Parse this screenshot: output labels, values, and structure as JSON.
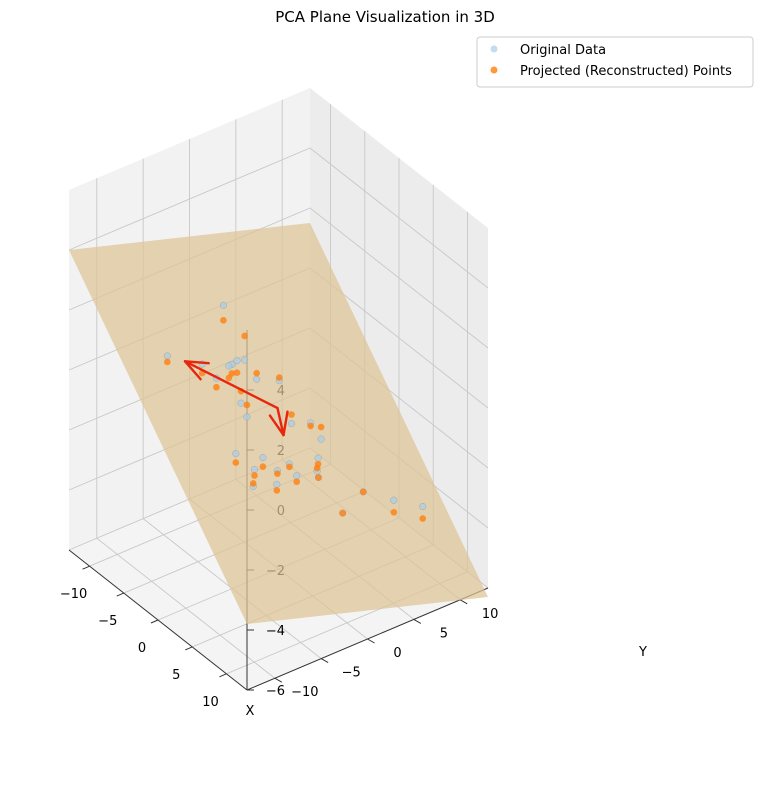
{
  "chart_data": {
    "type": "scatter",
    "title": "PCA Plane Visualization in 3D",
    "xlabel": "X",
    "ylabel": "Y",
    "zlabel": "",
    "xlim": [
      -13,
      13
    ],
    "ylim": [
      -13,
      13
    ],
    "zlim": [
      -6,
      6
    ],
    "xticks": [
      -10,
      -5,
      0,
      5,
      10
    ],
    "yticks": [
      -10,
      -5,
      0,
      5,
      10
    ],
    "zticks": [
      -6,
      -4,
      -2,
      0,
      2,
      4
    ],
    "xtick_labels": [
      "−10",
      "−5",
      "0",
      "5",
      "10"
    ],
    "ytick_labels": [
      "−10",
      "−5",
      "0",
      "5",
      "10"
    ],
    "ztick_labels": [
      "−6",
      "−4",
      "−2",
      "0",
      "2",
      "4"
    ],
    "grid": true,
    "legend_position": "top-right",
    "series": [
      {
        "name": "Original Data",
        "color": "#aacde7",
        "points": [
          [
            -0.6,
            -5.5,
            3.4
          ],
          [
            0.2,
            -3.8,
            1.5
          ],
          [
            -2.2,
            -6.6,
            1.3
          ],
          [
            -1.0,
            -4.3,
            1.2
          ],
          [
            -4.6,
            -8.6,
            1.4
          ],
          [
            0.6,
            -2.8,
            0.8
          ],
          [
            -0.1,
            -4.4,
            1.5
          ],
          [
            1.2,
            -0.8,
            0.6
          ],
          [
            2.3,
            -0.3,
            -0.7
          ],
          [
            3.2,
            1.1,
            -0.7
          ],
          [
            -0.2,
            -3.9,
            0.0
          ],
          [
            -1.7,
            -4.1,
            1.0
          ],
          [
            -2.3,
            -5.0,
            0.6
          ],
          [
            -1.5,
            -2.3,
            -0.9
          ],
          [
            2.0,
            -0.3,
            -2.1
          ],
          [
            3.2,
            1.8,
            -2.4
          ],
          [
            4.6,
            1.2,
            -1.0
          ],
          [
            -1.2,
            -0.8,
            -2.4
          ],
          [
            -0.7,
            0.4,
            -2.9
          ],
          [
            0.9,
            1.3,
            -2.9
          ],
          [
            2.4,
            2.5,
            -2.2
          ],
          [
            1.5,
            3.2,
            -3.1
          ],
          [
            -1.6,
            1.0,
            -3.6
          ],
          [
            -3.1,
            -0.3,
            -3.2
          ],
          [
            -2.2,
            -1.1,
            -3.5
          ],
          [
            -3.8,
            -1.8,
            -2.6
          ],
          [
            4.5,
            3.6,
            -3.8
          ],
          [
            4.8,
            5.6,
            -3.3
          ],
          [
            7.8,
            9.8,
            -3.8
          ],
          [
            5.2,
            8.6,
            -3.9
          ]
        ]
      },
      {
        "name": "Projected (Reconstructed) Points",
        "color": "#ff7f0e",
        "points": [
          [
            -0.6,
            -5.5,
            2.9
          ],
          [
            0.2,
            -3.8,
            2.3
          ],
          [
            -2.2,
            -6.6,
            1.0
          ],
          [
            -1.0,
            -4.3,
            0.9
          ],
          [
            -4.6,
            -8.6,
            1.2
          ],
          [
            0.6,
            -2.8,
            1.0
          ],
          [
            -0.1,
            -4.4,
            1.1
          ],
          [
            1.2,
            -0.8,
            0.7
          ],
          [
            2.3,
            -0.3,
            -0.4
          ],
          [
            3.2,
            1.1,
            -0.8
          ],
          [
            -0.2,
            -3.9,
            0.4
          ],
          [
            -1.7,
            -4.1,
            0.6
          ],
          [
            -2.3,
            -5.0,
            0.3
          ],
          [
            -1.5,
            -2.3,
            -0.5
          ],
          [
            2.0,
            -0.3,
            -2.2
          ],
          [
            3.2,
            1.8,
            -2.3
          ],
          [
            4.6,
            1.2,
            -0.6
          ],
          [
            -1.2,
            -0.8,
            -2.7
          ],
          [
            -0.7,
            0.4,
            -3.0
          ],
          [
            0.9,
            1.3,
            -3.1
          ],
          [
            2.4,
            2.5,
            -2.4
          ],
          [
            1.5,
            3.2,
            -3.1
          ],
          [
            -1.6,
            1.0,
            -3.8
          ],
          [
            -3.1,
            -0.3,
            -3.4
          ],
          [
            -2.2,
            -1.1,
            -3.4
          ],
          [
            -3.8,
            -1.8,
            -2.9
          ],
          [
            4.5,
            3.6,
            -3.8
          ],
          [
            4.8,
            5.6,
            -3.3
          ],
          [
            7.8,
            9.8,
            -4.2
          ],
          [
            5.2,
            8.6,
            -4.3
          ]
        ]
      }
    ],
    "plane": {
      "color": "#dcc394",
      "corners": [
        [
          -13,
          -13,
          4.0
        ],
        [
          13,
          -13,
          -3.8
        ],
        [
          13,
          13,
          -6.3
        ],
        [
          -13,
          13,
          1.5
        ]
      ]
    },
    "vectors": {
      "color": "#e8260e",
      "origin": [
        0.8,
        -0.7,
        -0.4
      ],
      "ends": [
        [
          -1.6,
          -8.9,
          1.8
        ],
        [
          -3.6,
          3.2,
          -2.6
        ]
      ]
    }
  }
}
